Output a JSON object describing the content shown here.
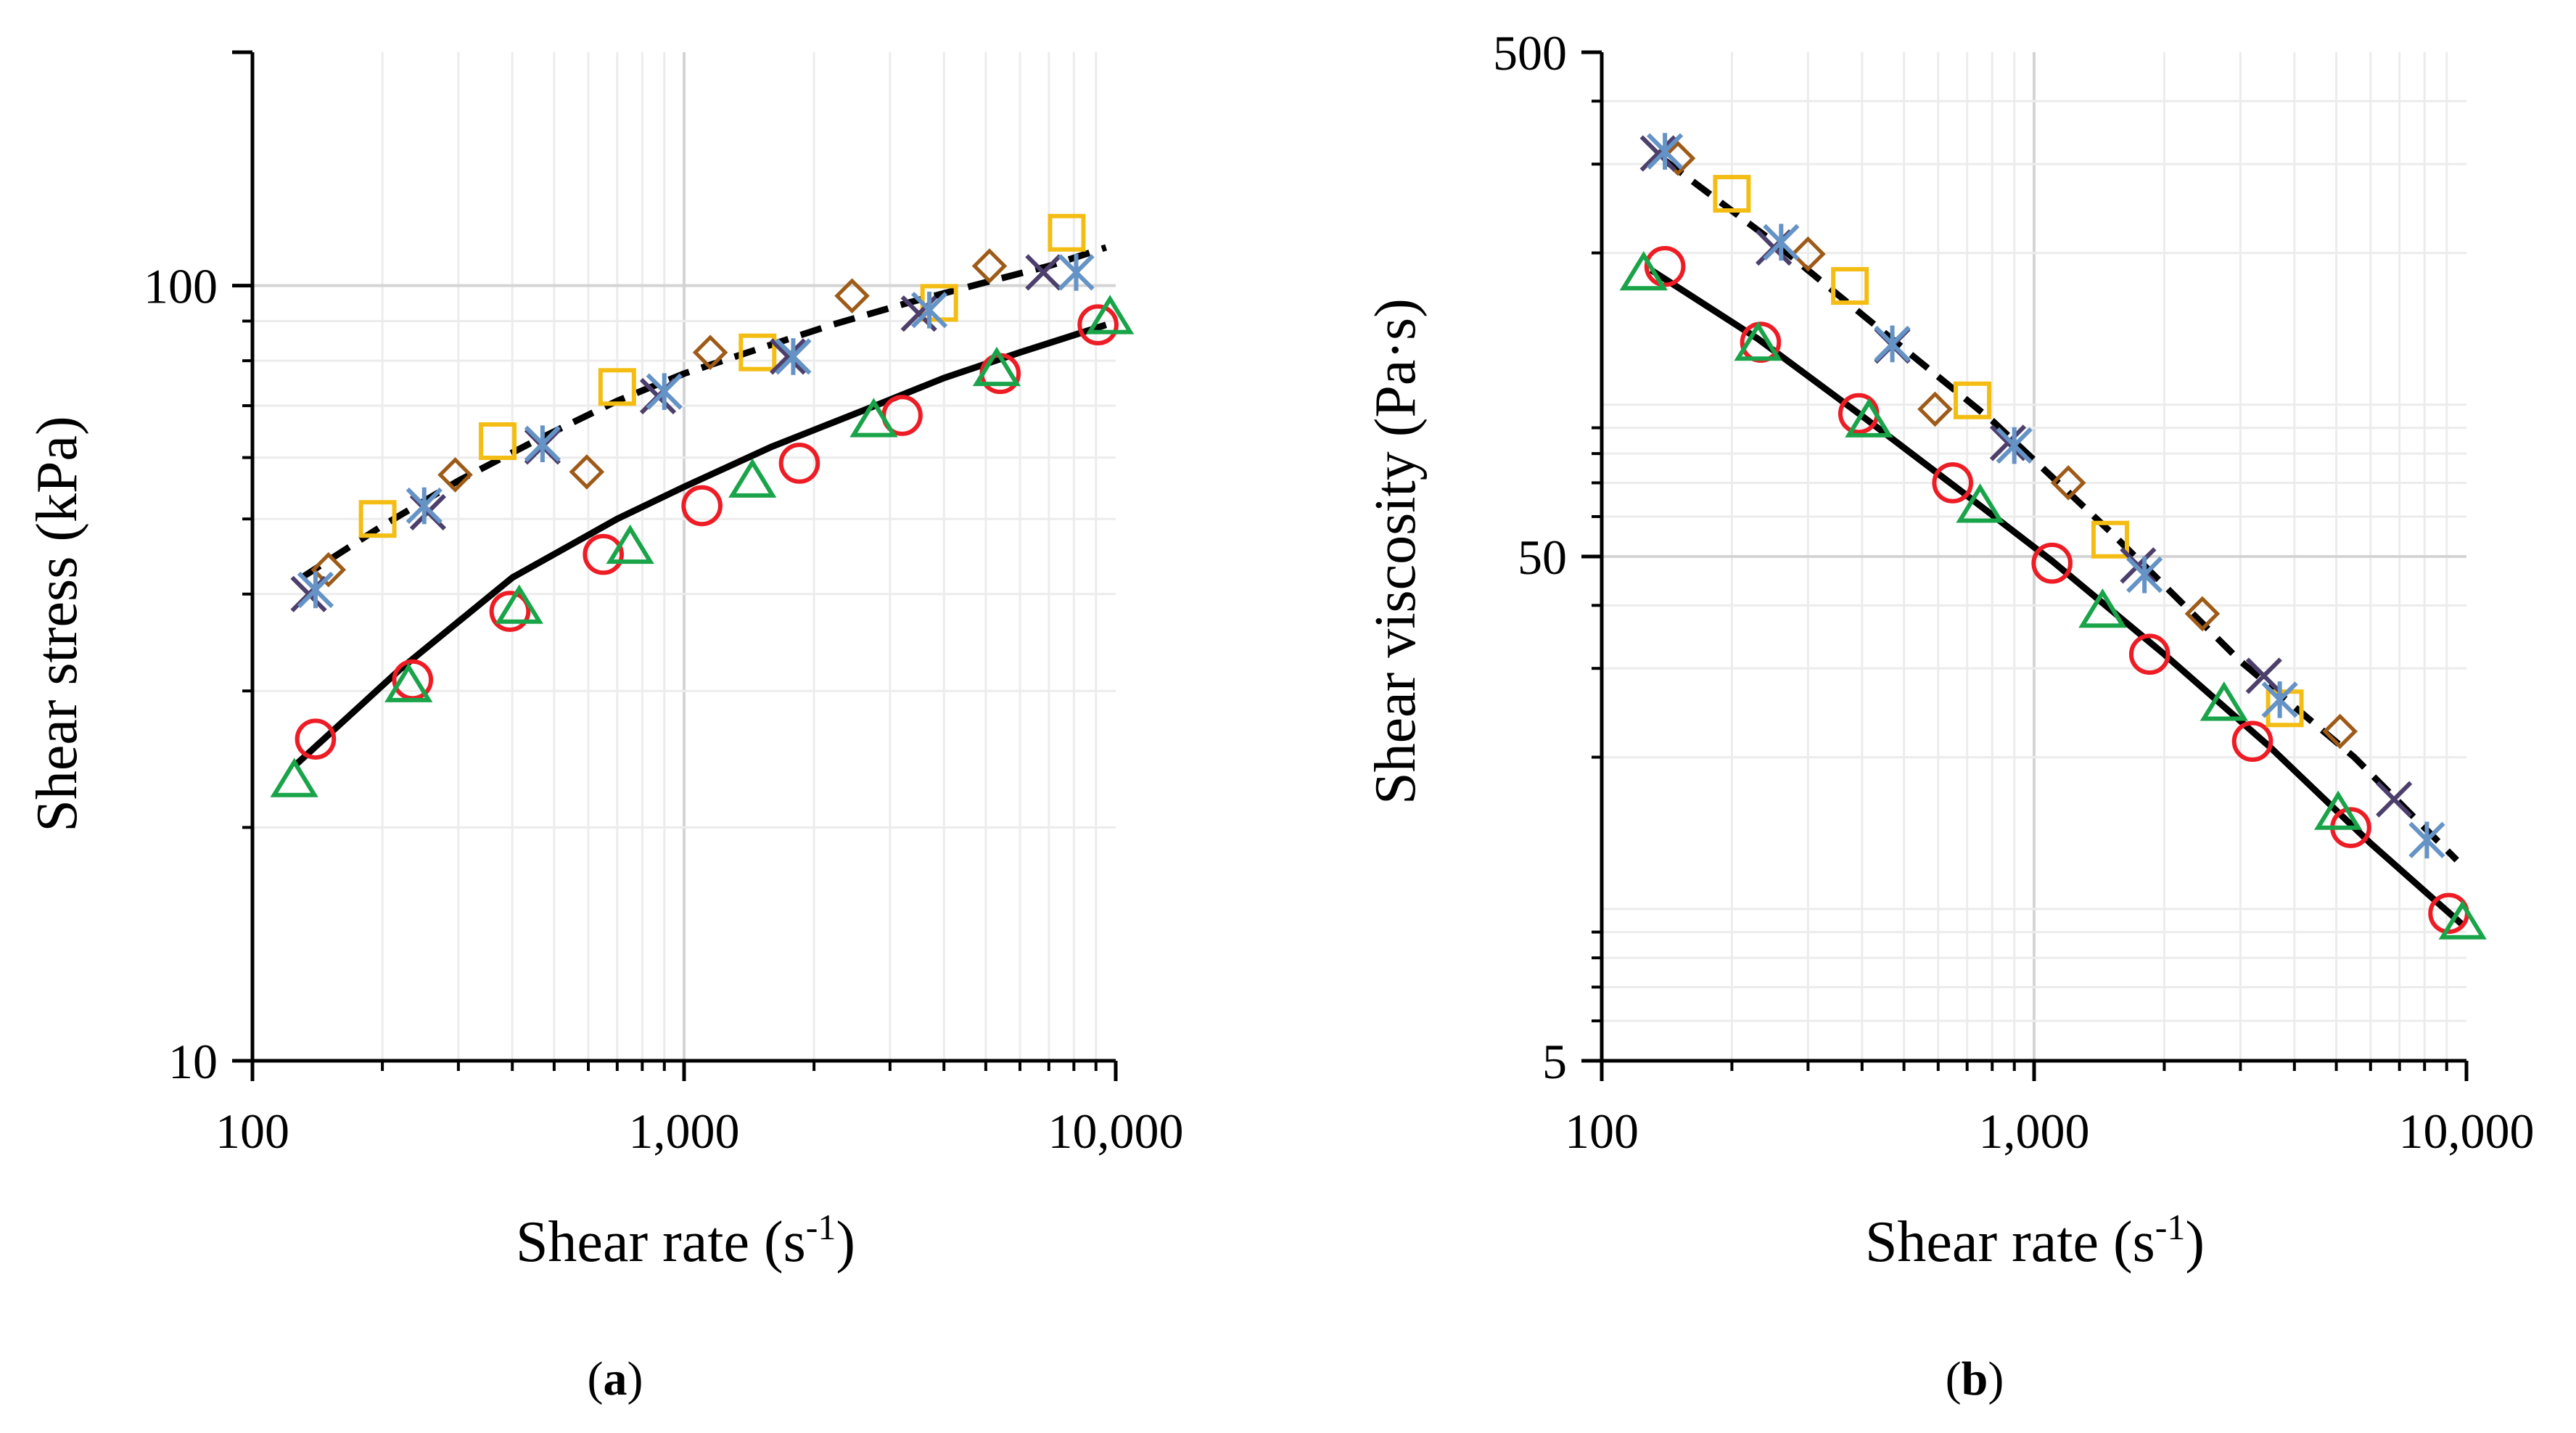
{
  "chart_data": [
    {
      "type": "scatter",
      "panel_label": "(a)",
      "panel_letter": "a",
      "xlabel": "Shear rate (s-1)",
      "ylabel": "Shear stress (kPa)",
      "x_scale": "log",
      "y_scale": "log",
      "xlim": [
        100,
        10000
      ],
      "ylim": [
        10,
        200
      ],
      "x_ticks": [
        {
          "value": 100,
          "label": "100"
        },
        {
          "value": 1000,
          "label": "1,000"
        },
        {
          "value": 10000,
          "label": "10,000"
        }
      ],
      "y_ticks": [
        {
          "value": 10,
          "label": "10"
        },
        {
          "value": 100,
          "label": "100"
        }
      ],
      "grid": true,
      "lines": [
        {
          "name": "fit-upper",
          "style": "dashed",
          "x": [
            130,
            200,
            300,
            450,
            700,
            1000,
            1500,
            2200,
            3300,
            5000,
            7000,
            9500
          ],
          "y": [
            42,
            49,
            56,
            63,
            71,
            77,
            83,
            89,
            95,
            101,
            106,
            112
          ]
        },
        {
          "name": "fit-lower",
          "style": "solid",
          "x": [
            125,
            220,
            400,
            700,
            1000,
            1600,
            2600,
            4000,
            6000,
            9500
          ],
          "y": [
            24,
            32,
            42,
            50,
            55,
            62,
            69,
            76,
            82,
            89
          ]
        }
      ],
      "series": [
        {
          "name": "circle",
          "marker": "circle",
          "color": "#ee1c24",
          "x": [
            140,
            235,
            395,
            650,
            1100,
            1850,
            3200,
            5400,
            9100
          ],
          "y": [
            26,
            31,
            38,
            45,
            52,
            59,
            68,
            77,
            89
          ]
        },
        {
          "name": "triangle",
          "marker": "triangle",
          "color": "#1aa449",
          "x": [
            125,
            230,
            415,
            750,
            1440,
            2750,
            5300,
            9700
          ],
          "y": [
            23,
            30.5,
            38.5,
            46,
            56,
            67,
            78,
            91
          ]
        },
        {
          "name": "diamond",
          "marker": "diamond",
          "color": "#9e5a17",
          "x": [
            150,
            295,
            595,
            1150,
            2450,
            5100
          ],
          "y": [
            43,
            57,
            57.5,
            82,
            97,
            106
          ]
        },
        {
          "name": "square",
          "marker": "square",
          "color": "#f4bd14",
          "x": [
            195,
            370,
            700,
            1480,
            3900,
            7700
          ],
          "y": [
            50,
            63,
            74,
            82,
            95,
            117
          ]
        },
        {
          "name": "cross",
          "marker": "x",
          "color": "#4d3f6b",
          "x": [
            135,
            255,
            470,
            870,
            1740,
            3500,
            6800
          ],
          "y": [
            40,
            51,
            62,
            72,
            81,
            92,
            104
          ]
        },
        {
          "name": "asterisk",
          "marker": "asterisk",
          "color": "#6593c6",
          "x": [
            140,
            250,
            470,
            900,
            1790,
            3700,
            8100
          ],
          "y": [
            40.5,
            52,
            62.5,
            73,
            81,
            93,
            104
          ]
        }
      ]
    },
    {
      "type": "scatter",
      "panel_label": "(b)",
      "panel_letter": "b",
      "xlabel": "Shear rate (s-1)",
      "ylabel": "Shear viscosity (Pa·s)",
      "x_scale": "log",
      "y_scale": "log",
      "xlim": [
        100,
        10000
      ],
      "ylim": [
        5,
        500
      ],
      "x_ticks": [
        {
          "value": 100,
          "label": "100"
        },
        {
          "value": 1000,
          "label": "1,000"
        },
        {
          "value": 10000,
          "label": "10,000"
        }
      ],
      "y_ticks": [
        {
          "value": 5,
          "label": "5"
        },
        {
          "value": 50,
          "label": "50"
        },
        {
          "value": 500,
          "label": "500"
        }
      ],
      "grid": true,
      "lines": [
        {
          "name": "fit-upper",
          "style": "dashed",
          "x": [
            140,
            250,
            450,
            800,
            1500,
            3000,
            5500,
            9500
          ],
          "y": [
            305,
            210,
            139,
            93,
            56,
            31,
            20,
            12.5
          ]
        },
        {
          "name": "fit-lower",
          "style": "solid",
          "x": [
            130,
            230,
            400,
            700,
            1100,
            2000,
            3500,
            6000,
            9800
          ],
          "y": [
            185,
            135,
            95,
            66,
            49,
            32,
            21,
            13.5,
            9.3
          ]
        }
      ],
      "series": [
        {
          "name": "circle",
          "marker": "circle",
          "color": "#ee1c24",
          "x": [
            140,
            233,
            393,
            648,
            1100,
            1850,
            3200,
            5400,
            9100
          ],
          "y": [
            188,
            133,
            96,
            70,
            48.5,
            32,
            21.5,
            14.5,
            9.8
          ]
        },
        {
          "name": "triangle",
          "marker": "triangle",
          "color": "#1aa449",
          "x": [
            125,
            230,
            415,
            750,
            1440,
            2750,
            5050,
            9800
          ],
          "y": [
            182,
            132,
            93,
            63,
            39,
            25.5,
            15.5,
            9.4
          ]
        },
        {
          "name": "diamond",
          "marker": "diamond",
          "color": "#9e5a17",
          "x": [
            150,
            300,
            590,
            1200,
            2450,
            5100
          ],
          "y": [
            308,
            199,
            98,
            70,
            38.5,
            22.5
          ]
        },
        {
          "name": "square",
          "marker": "square",
          "color": "#f4bd14",
          "x": [
            200,
            375,
            720,
            1500,
            3800
          ],
          "y": [
            262,
            172,
            102,
            54,
            25
          ]
        },
        {
          "name": "cross",
          "marker": "x",
          "color": "#4d3f6b",
          "x": [
            135,
            250,
            470,
            870,
            1740,
            3400,
            6800
          ],
          "y": [
            315,
            205,
            131,
            84,
            48,
            29,
            16.5
          ]
        },
        {
          "name": "asterisk",
          "marker": "asterisk",
          "color": "#6593c6",
          "x": [
            140,
            260,
            470,
            900,
            1800,
            3700,
            8100
          ],
          "y": [
            318,
            210,
            132,
            83,
            46,
            26,
            13.7
          ]
        }
      ]
    }
  ]
}
